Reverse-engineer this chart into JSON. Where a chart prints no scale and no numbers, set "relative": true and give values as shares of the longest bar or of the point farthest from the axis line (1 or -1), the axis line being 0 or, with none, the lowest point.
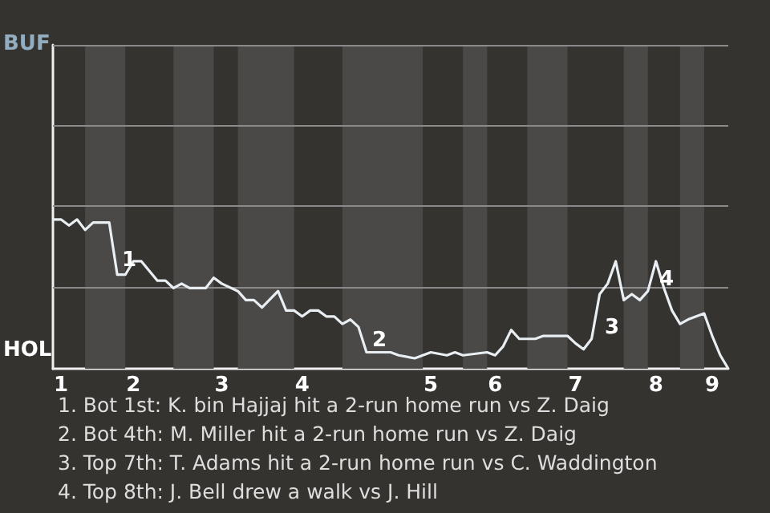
{
  "chart_data": {
    "type": "line",
    "relative": true,
    "categories": [
      null,
      "1",
      null,
      null,
      null,
      null,
      null,
      null,
      null,
      null,
      "2",
      null,
      null,
      null,
      null,
      null,
      null,
      null,
      null,
      null,
      null,
      "3",
      null,
      null,
      null,
      null,
      null,
      null,
      null,
      null,
      null,
      "4",
      null,
      null,
      null,
      null,
      null,
      null,
      null,
      null,
      null,
      null,
      null,
      null,
      null,
      null,
      null,
      "5",
      null,
      null,
      null,
      null,
      null,
      null,
      null,
      "6",
      null,
      null,
      null,
      null,
      null,
      null,
      null,
      null,
      null,
      "7",
      null,
      null,
      null,
      null,
      null,
      null,
      null,
      null,
      null,
      "8",
      null,
      null,
      null,
      null,
      null,
      null,
      "9",
      null,
      null
    ],
    "series": [
      {
        "color": "#e8eef2",
        "values": [
          1,
          1,
          0.96,
          1,
          0.93,
          0.98,
          0.98,
          0.98,
          0.63,
          0.63,
          0.72,
          0.72,
          null,
          0.59,
          0.59,
          0.54,
          0.57,
          0.54,
          null,
          0.54,
          0.61,
          0.57,
          null,
          0.52,
          0.46,
          0.46,
          0.41,
          null,
          0.52,
          0.39,
          0.39,
          0.35,
          0.39,
          0.39,
          0.35,
          0.35,
          0.3,
          0.33,
          0.28,
          0.11,
          null,
          null,
          0.11,
          0.09,
          null,
          0.07,
          null,
          0.11,
          null,
          0.09,
          0.11,
          0.09,
          null,
          null,
          0.11,
          0.09,
          0.15,
          0.26,
          0.2,
          null,
          0.2,
          0.22,
          null,
          null,
          0.22,
          0.17,
          0.13,
          0.2,
          0.5,
          0.57,
          0.72,
          0.46,
          0.5,
          0.46,
          0.52,
          0.72,
          0.54,
          0.39,
          0.3,
          0.33,
          null,
          0.37,
          0.22,
          0.09,
          0
        ]
      }
    ],
    "marker": "none",
    "ref_lines": [
      {
        "axis": "y",
        "value": 0.54,
        "color": "#8a8a8a"
      },
      {
        "axis": "y",
        "value": 1.09,
        "color": "#8a8a8a"
      },
      {
        "axis": "y",
        "value": 1.63,
        "color": "#8a8a8a"
      },
      {
        "axis": "y",
        "value": 2.17,
        "color": "#8a8a8a"
      }
    ],
    "annotations": [
      "BUF",
      "HOL",
      "1",
      "2",
      "3",
      "4",
      "1. Bot 1st: K. bin Hajjaj hit a 2-run home run vs Z. Daig",
      "2. Bot 4th: M. Miller hit a 2-run home run vs Z. Daig",
      "3. Top 7th: T. Adams hit a 2-run home run vs C. Waddington",
      "4. Top 8th: J. Bell drew a walk vs J. Hill"
    ]
  }
}
